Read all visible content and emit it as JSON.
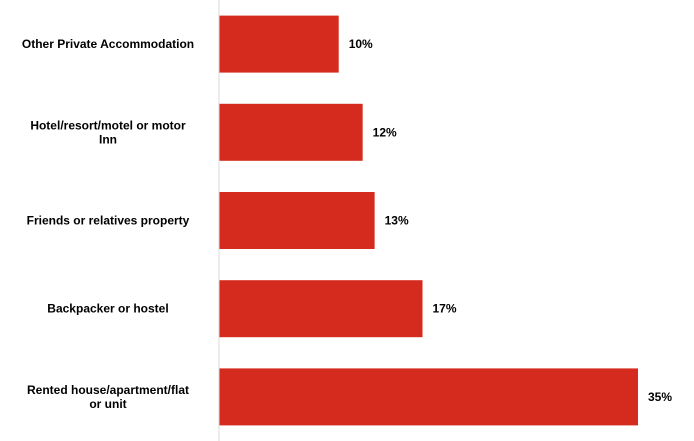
{
  "chart_data": {
    "type": "bar",
    "orientation": "horizontal",
    "categories": [
      "Other Private Accommodation",
      "Hotel/resort/motel or motor Inn",
      "Friends or relatives property",
      "Backpacker or hostel",
      "Rented house/apartment/flat or unit"
    ],
    "category_lines": [
      [
        "Other Private Accommodation"
      ],
      [
        "Hotel/resort/motel or motor",
        "Inn"
      ],
      [
        "Friends or relatives property"
      ],
      [
        "Backpacker or hostel"
      ],
      [
        "Rented house/apartment/flat",
        "or unit"
      ]
    ],
    "values": [
      10,
      12,
      13,
      17,
      35
    ],
    "value_labels": [
      "10%",
      "12%",
      "13%",
      "17%",
      "35%"
    ],
    "xlim": [
      0,
      35
    ],
    "grid": false,
    "legend": "none",
    "colors": {
      "bar": "#D52B1E",
      "axis": "#D9D9D9"
    }
  }
}
